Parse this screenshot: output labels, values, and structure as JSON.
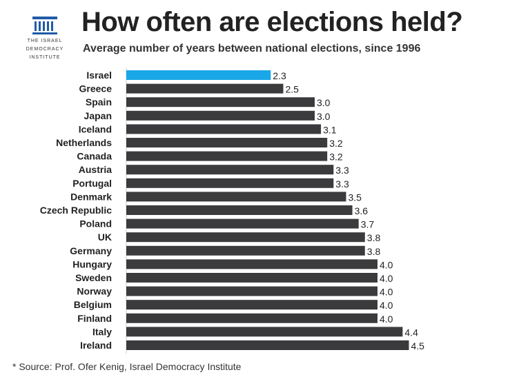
{
  "logo": {
    "line1": "THE ISRAEL",
    "line2": "DEMOCRACY",
    "line3": "INSTITUTE",
    "icon": "building-columns-icon",
    "color": "#1f5aa6"
  },
  "title": "How often are elections held?",
  "subtitle": "Average number of years between national elections, since 1996",
  "source": "* Source: Prof. Ofer Kenig, Israel Democracy Institute",
  "chart_data": {
    "type": "bar",
    "orientation": "horizontal",
    "categories": [
      "Israel",
      "Greece",
      "Spain",
      "Japan",
      "Iceland",
      "Netherlands",
      "Canada",
      "Austria",
      "Portugal",
      "Denmark",
      "Czech Republic",
      "Poland",
      "UK",
      "Germany",
      "Hungary",
      "Sweden",
      "Norway",
      "Belgium",
      "Finland",
      "Italy",
      "Ireland"
    ],
    "values": [
      2.3,
      2.5,
      3.0,
      3.0,
      3.1,
      3.2,
      3.2,
      3.3,
      3.3,
      3.5,
      3.6,
      3.7,
      3.8,
      3.8,
      4.0,
      4.0,
      4.0,
      4.0,
      4.0,
      4.4,
      4.5
    ],
    "value_labels": [
      "2.3",
      "2.5",
      "3.0",
      "3.0",
      "3.1",
      "3.2",
      "3.2",
      "3.3",
      "3.3",
      "3.5",
      "3.6",
      "3.7",
      "3.8",
      "3.8",
      "4.0",
      "4.0",
      "4.0",
      "4.0",
      "4.0",
      "4.4",
      "4.5"
    ],
    "highlight_category": "Israel",
    "highlight_color": "#1aa7e8",
    "bar_color": "#3b3b3e",
    "xlim": [
      0,
      4.5
    ],
    "grid": false
  }
}
